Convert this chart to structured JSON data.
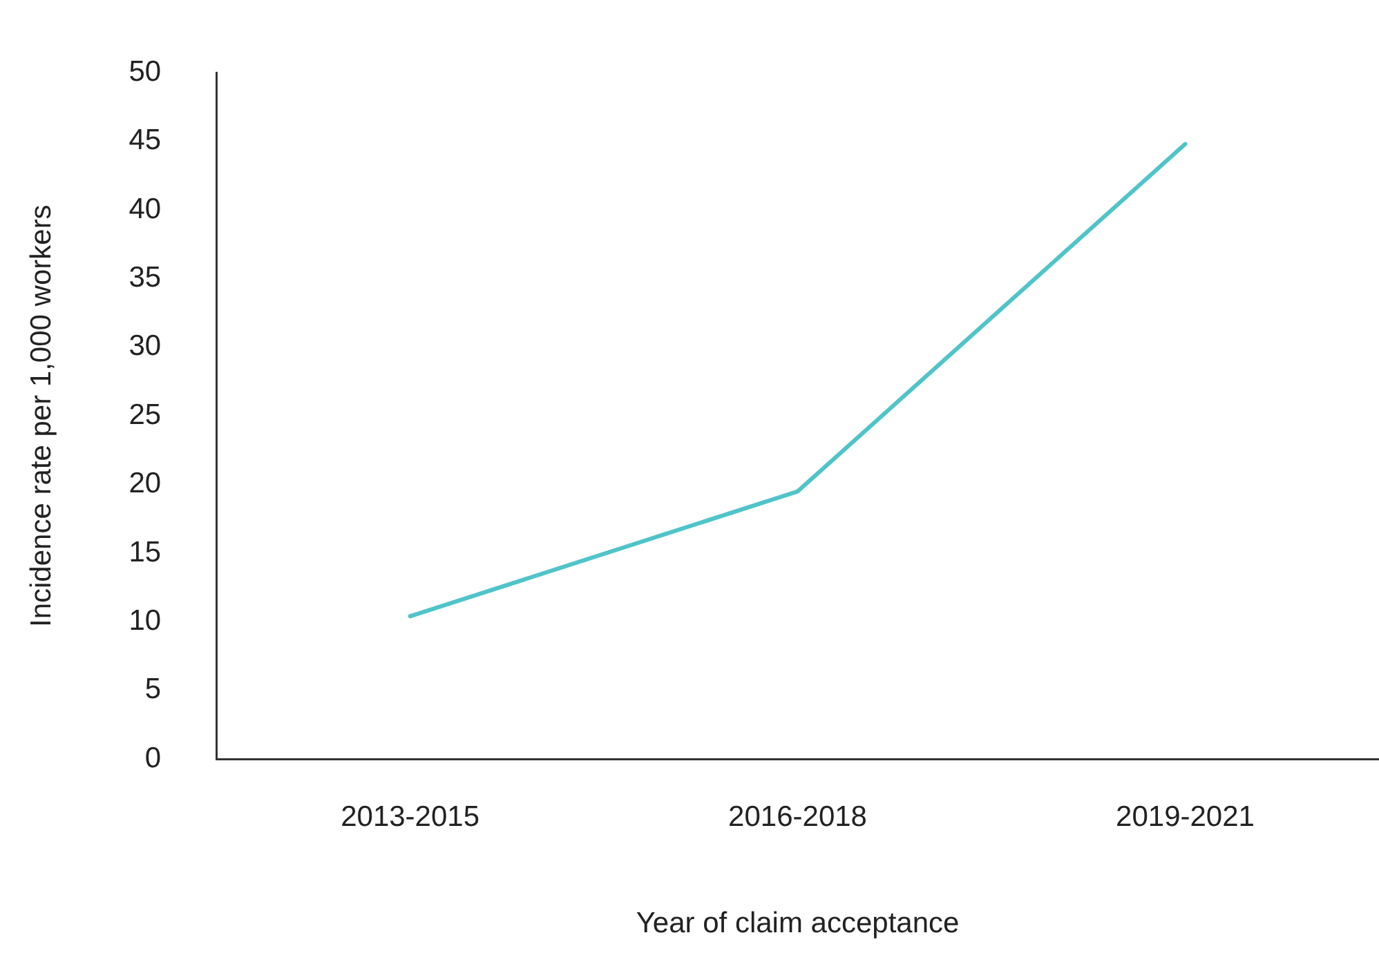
{
  "chart_data": {
    "type": "line",
    "xlabel": "Year of claim acceptance",
    "ylabel": "Incidence rate per 1,000 workers",
    "categories": [
      "2013-2015",
      "2016-2018",
      "2019-2021"
    ],
    "series": [
      {
        "color": "#4fc4c9",
        "values": [
          10.4,
          19.5,
          44.8
        ]
      }
    ],
    "ylim": [
      0,
      50
    ],
    "yticks": [
      0,
      5,
      10,
      15,
      20,
      25,
      30,
      35,
      40,
      45,
      50
    ],
    "grid": false,
    "legend": false,
    "marker": "none",
    "line_style": "solid"
  }
}
